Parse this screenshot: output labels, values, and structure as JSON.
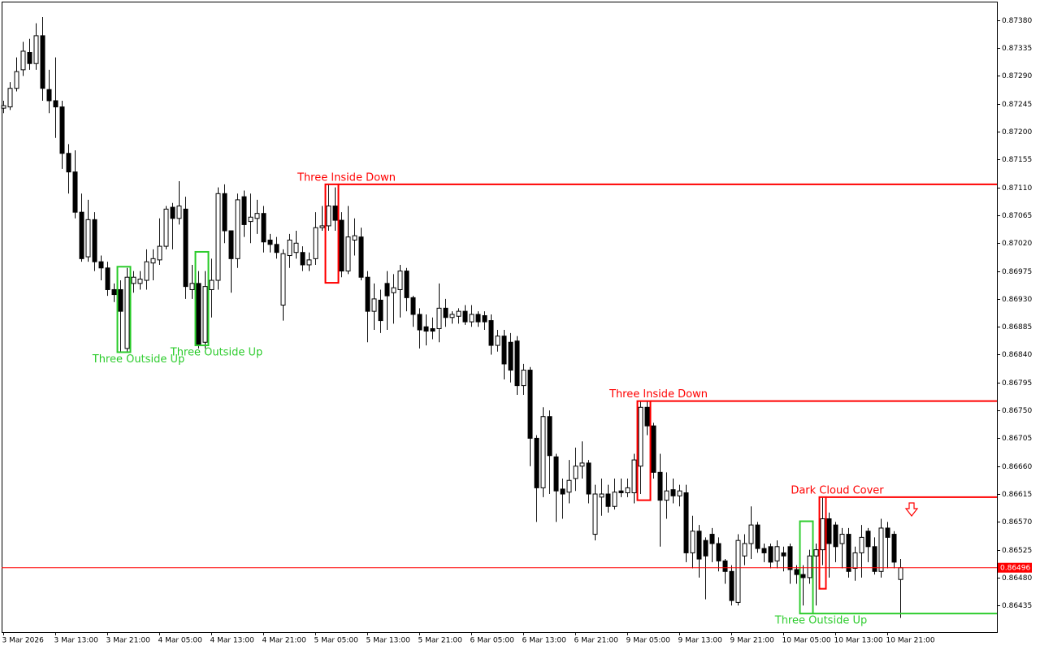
{
  "chart_data": {
    "type": "candlestick",
    "open": [
      0.87238,
      0.8724,
      0.8727,
      0.873,
      0.87328,
      0.8731,
      0.87355,
      0.87268,
      0.8725,
      0.8724,
      0.87165,
      0.87135,
      0.8707,
      0.86998,
      0.87058,
      0.8699,
      0.8698,
      0.86945,
      0.86945,
      0.8685,
      0.86955,
      0.86955,
      0.8696,
      0.86988,
      0.86993,
      0.87015,
      0.87078,
      0.8706,
      0.87075,
      0.86945,
      0.86955,
      0.8686,
      0.86945,
      0.8696,
      0.871,
      0.8704,
      0.86995,
      0.87095,
      0.87055,
      0.8706,
      0.87068,
      0.87025,
      0.87018,
      0.8692,
      0.87,
      0.87005,
      0.87005,
      0.86985,
      0.86995,
      0.87045,
      0.87048,
      0.8708,
      0.87057,
      0.86975,
      0.87025,
      0.8703,
      0.86965,
      0.8691,
      0.86928,
      0.86955,
      0.8694,
      0.86945,
      0.86975,
      0.86932,
      0.86905,
      0.86885,
      0.86882,
      0.86882,
      0.86915,
      0.869,
      0.86902,
      0.8691,
      0.86893,
      0.86905,
      0.86903,
      0.86895,
      0.86855,
      0.8687,
      0.8686,
      0.86862,
      0.8679,
      0.86815,
      0.86705,
      0.86625,
      0.8674,
      0.86675,
      0.86623,
      0.86618,
      0.8664,
      0.8666,
      0.86665,
      0.8655,
      0.8661,
      0.86615,
      0.86595,
      0.8662,
      0.86617,
      0.86617,
      0.8666,
      0.86755,
      0.86725,
      0.8665,
      0.86605,
      0.86622,
      0.86612,
      0.86617,
      0.8652,
      0.86555,
      0.8654,
      0.8655,
      0.86535,
      0.86507,
      0.8649,
      0.8644,
      0.86515,
      0.86535,
      0.86565,
      0.86527,
      0.8653,
      0.86507,
      0.8652,
      0.8653,
      0.86493,
      0.86485,
      0.8648,
      0.86515,
      0.86525,
      0.86575,
      0.86565,
      0.86535,
      0.8655,
      0.86495,
      0.8652,
      0.86555,
      0.8653,
      0.8649,
      0.8656,
      0.8655,
      0.86477
    ],
    "high": [
      0.8725,
      0.8728,
      0.8732,
      0.87345,
      0.8735,
      0.87375,
      0.87385,
      0.873,
      0.8732,
      0.8725,
      0.8718,
      0.8717,
      0.871,
      0.8709,
      0.8707,
      0.87,
      0.8699,
      0.86955,
      0.8696,
      0.8698,
      0.86975,
      0.86975,
      0.8701,
      0.8701,
      0.8706,
      0.8708,
      0.87085,
      0.8712,
      0.87095,
      0.86985,
      0.86975,
      0.86975,
      0.86995,
      0.8711,
      0.87115,
      0.8704,
      0.871,
      0.87105,
      0.871,
      0.8709,
      0.8708,
      0.87035,
      0.8703,
      0.8701,
      0.87035,
      0.8704,
      0.87015,
      0.87005,
      0.8707,
      0.8708,
      0.87115,
      0.8711,
      0.8707,
      0.8708,
      0.8706,
      0.87045,
      0.86975,
      0.86955,
      0.86945,
      0.86975,
      0.8697,
      0.86985,
      0.8698,
      0.86935,
      0.86915,
      0.86905,
      0.869,
      0.86955,
      0.8693,
      0.8691,
      0.86915,
      0.8692,
      0.8692,
      0.8691,
      0.8691,
      0.86905,
      0.8688,
      0.8688,
      0.86875,
      0.8687,
      0.86825,
      0.8682,
      0.8671,
      0.86755,
      0.8675,
      0.8668,
      0.8664,
      0.8667,
      0.8669,
      0.867,
      0.8667,
      0.8663,
      0.8664,
      0.8663,
      0.8664,
      0.8664,
      0.8664,
      0.8668,
      0.86765,
      0.86765,
      0.8673,
      0.8668,
      0.8665,
      0.8664,
      0.8663,
      0.8663,
      0.8658,
      0.86565,
      0.86545,
      0.8656,
      0.86545,
      0.8651,
      0.865,
      0.8655,
      0.8655,
      0.86595,
      0.8657,
      0.86535,
      0.86535,
      0.8654,
      0.8653,
      0.86535,
      0.865,
      0.865,
      0.86525,
      0.86535,
      0.8661,
      0.86585,
      0.8657,
      0.8656,
      0.8656,
      0.8653,
      0.86565,
      0.8656,
      0.86545,
      0.86575,
      0.8657,
      0.86555,
      0.8651
    ],
    "low": [
      0.8723,
      0.87235,
      0.87265,
      0.8729,
      0.873,
      0.873,
      0.8725,
      0.8723,
      0.8719,
      0.8714,
      0.871,
      0.8706,
      0.8699,
      0.8699,
      0.86975,
      0.8696,
      0.86935,
      0.86925,
      0.86845,
      0.86845,
      0.8694,
      0.86945,
      0.86945,
      0.8696,
      0.86985,
      0.8701,
      0.8701,
      0.8705,
      0.8693,
      0.8693,
      0.8685,
      0.8685,
      0.869,
      0.86945,
      0.8702,
      0.8694,
      0.8698,
      0.8703,
      0.8702,
      0.87035,
      0.87005,
      0.87005,
      0.86995,
      0.86895,
      0.8698,
      0.86995,
      0.86975,
      0.86975,
      0.86985,
      0.8704,
      0.8704,
      0.8704,
      0.86965,
      0.8697,
      0.87,
      0.8696,
      0.8686,
      0.8688,
      0.86875,
      0.8688,
      0.8689,
      0.869,
      0.8691,
      0.86885,
      0.8685,
      0.86855,
      0.86865,
      0.8686,
      0.86885,
      0.8689,
      0.8689,
      0.86888,
      0.86885,
      0.86885,
      0.8688,
      0.8684,
      0.86845,
      0.868,
      0.86795,
      0.86775,
      0.86775,
      0.8666,
      0.8657,
      0.8661,
      0.86615,
      0.8657,
      0.86575,
      0.866,
      0.8662,
      0.8664,
      0.866,
      0.8654,
      0.8658,
      0.86585,
      0.8659,
      0.8661,
      0.8661,
      0.866,
      0.86615,
      0.8671,
      0.8664,
      0.8653,
      0.86575,
      0.866,
      0.86595,
      0.86505,
      0.86495,
      0.8648,
      0.86445,
      0.86505,
      0.8649,
      0.8647,
      0.86435,
      0.86435,
      0.865,
      0.8651,
      0.8652,
      0.86505,
      0.86495,
      0.86495,
      0.8649,
      0.8647,
      0.8647,
      0.86435,
      0.8647,
      0.86435,
      0.865,
      0.8648,
      0.86505,
      0.86495,
      0.8648,
      0.86475,
      0.8648,
      0.86505,
      0.86485,
      0.8648,
      0.86495,
      0.86495,
      0.86415
    ],
    "close": [
      0.87242,
      0.8727,
      0.87297,
      0.8733,
      0.8731,
      0.87355,
      0.8727,
      0.8725,
      0.8724,
      0.87165,
      0.87135,
      0.8707,
      0.86995,
      0.87058,
      0.8699,
      0.8698,
      0.86945,
      0.86937,
      0.8691,
      0.86965,
      0.86965,
      0.86962,
      0.8699,
      0.86995,
      0.87015,
      0.87075,
      0.8706,
      0.8708,
      0.8695,
      0.86955,
      0.86855,
      0.8695,
      0.8696,
      0.871,
      0.8704,
      0.86995,
      0.8709,
      0.8705,
      0.87062,
      0.87068,
      0.87022,
      0.87018,
      0.87005,
      0.87003,
      0.87025,
      0.8702,
      0.86985,
      0.86993,
      0.87045,
      0.87048,
      0.8708,
      0.87057,
      0.86975,
      0.8703,
      0.87032,
      0.86965,
      0.8691,
      0.8693,
      0.86895,
      0.86935,
      0.86948,
      0.86975,
      0.86932,
      0.86905,
      0.8688,
      0.86878,
      0.86878,
      0.86915,
      0.869,
      0.86905,
      0.8691,
      0.86893,
      0.86905,
      0.86893,
      0.86893,
      0.86855,
      0.8687,
      0.86825,
      0.86815,
      0.8679,
      0.86815,
      0.86705,
      0.86625,
      0.8674,
      0.86677,
      0.8662,
      0.86615,
      0.86637,
      0.8666,
      0.86665,
      0.86615,
      0.86615,
      0.86615,
      0.86595,
      0.86618,
      0.86617,
      0.86625,
      0.8667,
      0.86755,
      0.86725,
      0.8665,
      0.86605,
      0.8662,
      0.86612,
      0.8662,
      0.8652,
      0.86555,
      0.8651,
      0.86515,
      0.86535,
      0.86507,
      0.8649,
      0.86443,
      0.8654,
      0.86535,
      0.86565,
      0.86527,
      0.8652,
      0.86505,
      0.8653,
      0.86515,
      0.86493,
      0.86485,
      0.8648,
      0.86515,
      0.86525,
      0.86575,
      0.86535,
      0.8653,
      0.8655,
      0.8649,
      0.8652,
      0.86545,
      0.8653,
      0.8649,
      0.8656,
      0.86545,
      0.86505,
      0.86496
    ],
    "xlim": [
      -0.25,
      152.9
    ],
    "xticks": [
      {
        "value": 0,
        "label": "3 Mar 2026"
      },
      {
        "value": 8,
        "label": "3 Mar 13:00"
      },
      {
        "value": 16,
        "label": "3 Mar 21:00"
      },
      {
        "value": 24,
        "label": "4 Mar 05:00"
      },
      {
        "value": 32,
        "label": "4 Mar 13:00"
      },
      {
        "value": 40,
        "label": "4 Mar 21:00"
      },
      {
        "value": 48,
        "label": "5 Mar 05:00"
      },
      {
        "value": 56,
        "label": "5 Mar 13:00"
      },
      {
        "value": 64,
        "label": "5 Mar 21:00"
      },
      {
        "value": 72,
        "label": "6 Mar 05:00"
      },
      {
        "value": 80,
        "label": "6 Mar 13:00"
      },
      {
        "value": 88,
        "label": "6 Mar 21:00"
      },
      {
        "value": 96,
        "label": "9 Mar 05:00"
      },
      {
        "value": 104,
        "label": "9 Mar 13:00"
      },
      {
        "value": 112,
        "label": "9 Mar 21:00"
      },
      {
        "value": 120,
        "label": "10 Mar 05:00"
      },
      {
        "value": 128,
        "label": "10 Mar 13:00"
      },
      {
        "value": 136,
        "label": "10 Mar 21:00"
      }
    ],
    "ylim": [
      0.86392,
      0.8741
    ],
    "yticks": [
      {
        "value": 0.8738,
        "label": "0.87380"
      },
      0.87335,
      {
        "value": 0.8729,
        "label": "0.87290"
      },
      0.87245,
      {
        "value": 0.872,
        "label": "0.87200"
      },
      0.87155,
      {
        "value": 0.8711,
        "label": "0.87110"
      },
      0.87065,
      {
        "value": 0.8702,
        "label": "0.87020"
      },
      0.86975,
      {
        "value": 0.8693,
        "label": "0.86930"
      },
      0.86885,
      {
        "value": 0.8684,
        "label": "0.86840"
      },
      0.86795,
      {
        "value": 0.8675,
        "label": "0.86750"
      },
      0.86705,
      {
        "value": 0.8666,
        "label": "0.86660"
      },
      0.86615,
      {
        "value": 0.8657,
        "label": "0.86570"
      },
      0.86525,
      {
        "value": 0.8648,
        "label": "0.86480"
      },
      0.86435
    ],
    "last_price": 0.86496,
    "last_price_color": "#ff0000",
    "patterns": [
      {
        "label": "Three Outside Up",
        "start": 18,
        "end": 19,
        "high": 0.86982,
        "low": 0.86844,
        "color": "#2ecc2e",
        "extend": false
      },
      {
        "label": "Three Outside Up",
        "start": 30,
        "end": 31,
        "high": 0.87006,
        "low": 0.86855,
        "color": "#2ecc2e",
        "extend": false
      },
      {
        "label": "Three Inside Down",
        "start": 50,
        "end": 51,
        "high": 0.87115,
        "low": 0.86956,
        "color": "#ff0000",
        "extend": true
      },
      {
        "label": "Three Inside Down",
        "start": 98,
        "end": 99,
        "high": 0.86765,
        "low": 0.86605,
        "color": "#ff0000",
        "extend": true
      },
      {
        "label": "Dark Cloud Cover",
        "start": 126,
        "end": 126,
        "high": 0.8661,
        "low": 0.86462,
        "color": "#ff0000",
        "extend": true
      },
      {
        "label": "Three Outside Up",
        "start": 123,
        "end": 124,
        "high": 0.86571,
        "low": 0.86422,
        "color": "#2ecc2e",
        "extend": true
      }
    ]
  }
}
